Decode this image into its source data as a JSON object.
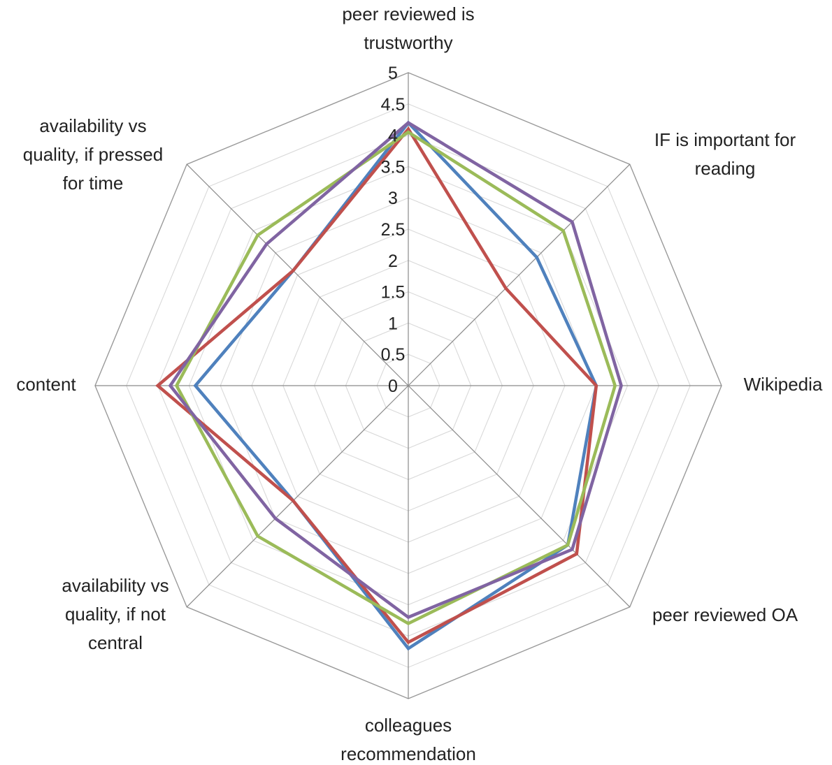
{
  "chart_data": {
    "type": "radar",
    "title": "",
    "categories": [
      "peer reviewed is trustworthy",
      "IF is important for reading",
      "Wikipedia",
      "peer reviewed OA",
      "colleagues recommendation",
      "availability vs quality, if not central",
      "content",
      "availability vs quality, if pressed for time"
    ],
    "category_lines": [
      [
        "peer reviewed is",
        "trustworthy"
      ],
      [
        "IF is important for",
        "reading"
      ],
      [
        "Wikipedia"
      ],
      [
        "peer reviewed OA"
      ],
      [
        "colleagues",
        "recommendation"
      ],
      [
        "availability vs",
        "quality, if not",
        "central"
      ],
      [
        "content"
      ],
      [
        "availability vs",
        "quality, if pressed",
        "for time"
      ]
    ],
    "ticks": [
      "0",
      "0.5",
      "1",
      "1.5",
      "2",
      "2.5",
      "3",
      "3.5",
      "4",
      "4.5",
      "5"
    ],
    "rlim": [
      0,
      5
    ],
    "grid": true,
    "legend": "none",
    "series": [
      {
        "color": "#4F81BD",
        "values": [
          4.2,
          2.9,
          3.0,
          3.6,
          4.2,
          2.6,
          3.4,
          2.6
        ]
      },
      {
        "color": "#C0504D",
        "values": [
          4.1,
          2.2,
          3.0,
          3.8,
          4.1,
          2.6,
          4.0,
          2.6
        ]
      },
      {
        "color": "#9BBB59",
        "values": [
          4.05,
          3.5,
          3.3,
          3.6,
          3.8,
          3.4,
          3.7,
          3.4
        ]
      },
      {
        "color": "#8064A2",
        "values": [
          4.2,
          3.7,
          3.4,
          3.7,
          3.7,
          3.0,
          3.8,
          3.2
        ]
      }
    ]
  }
}
